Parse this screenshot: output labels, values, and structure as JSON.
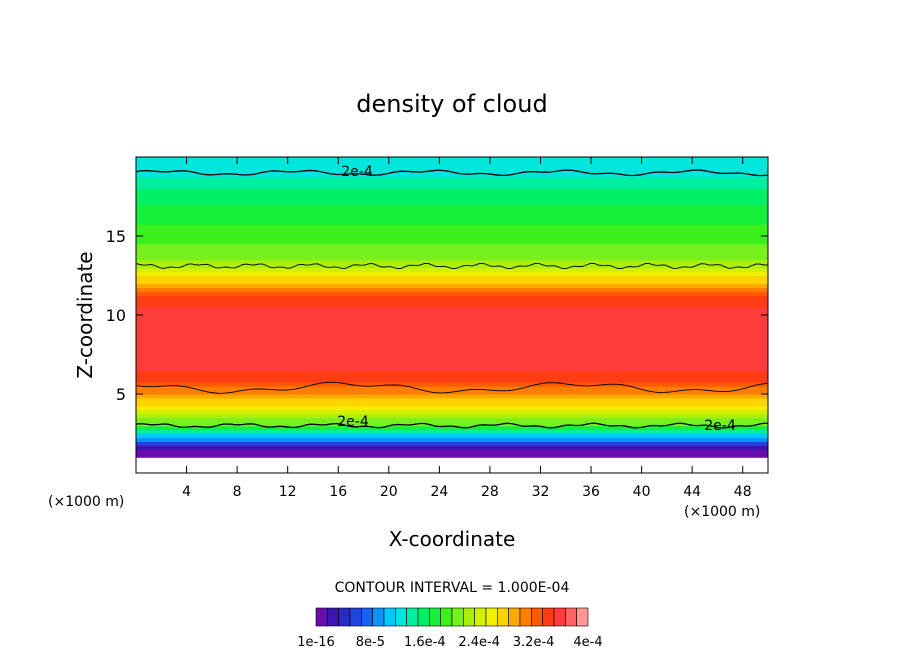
{
  "chart_data": {
    "type": "heatmap",
    "title": "density of cloud",
    "xlabel": "X-coordinate",
    "ylabel": "Z-coordinate",
    "x_unit_left": "(×1000 m)",
    "x_unit_right": "(×1000 m)",
    "xlim": [
      0,
      50
    ],
    "ylim": [
      0,
      20
    ],
    "x_ticks": [
      4,
      8,
      12,
      16,
      20,
      24,
      28,
      32,
      36,
      40,
      44,
      48
    ],
    "y_ticks": [
      5,
      10,
      15
    ],
    "contour_interval_text": "CONTOUR INTERVAL = 1.000E-04",
    "contour_labels": [
      "2e-4",
      "2e-4",
      "2e-4"
    ],
    "colorbar": {
      "levels": 24,
      "tick_labels": [
        "1e-16",
        "8e-5",
        "1.6e-4",
        "2.4e-4",
        "3.2e-4",
        "4e-4"
      ],
      "colors": [
        "#6a0dad",
        "#3c14b4",
        "#2a2ac8",
        "#1e46dc",
        "#1464f0",
        "#0a96ff",
        "#00c8ff",
        "#00e6dc",
        "#00f0a0",
        "#00f064",
        "#14f03c",
        "#3cf01e",
        "#78f01e",
        "#aaf00a",
        "#d2f000",
        "#f0f000",
        "#ffd200",
        "#ffaa00",
        "#ff7d00",
        "#ff5a00",
        "#ff3c14",
        "#ff3c3c",
        "#ff6464",
        "#ff9696"
      ]
    },
    "profile_z": [
      0,
      1,
      1.5,
      2,
      2.5,
      3,
      3.5,
      4,
      5,
      6,
      7,
      8,
      9,
      10,
      11,
      12,
      13,
      14,
      15,
      16,
      17,
      18,
      19,
      20
    ],
    "profile_value": [
      0,
      0,
      2e-05,
      7e-05,
      0.00013,
      0.0002,
      0.00022,
      0.00025,
      0.0003,
      0.00034,
      0.00036,
      0.000365,
      0.000365,
      0.00036,
      0.00034,
      0.00029,
      0.00023,
      0.000205,
      0.000195,
      0.00018,
      0.000165,
      0.00015,
      0.00013,
      0.000125
    ]
  }
}
